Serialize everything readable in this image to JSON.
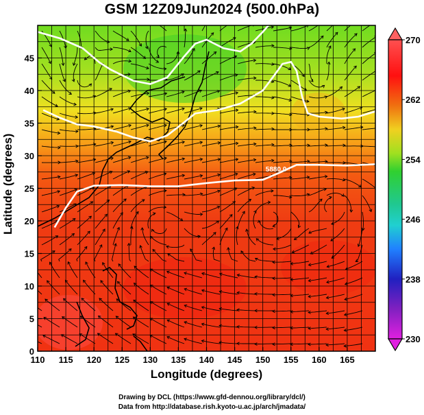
{
  "title": "GSM 12Z09Jun2024 (500.0hPa)",
  "axes": {
    "xlabel": "Longitude (degrees)",
    "ylabel": "Latitude  (degrees)",
    "xticks": [
      "110",
      "115",
      "120",
      "125",
      "130",
      "135",
      "140",
      "145",
      "150",
      "155",
      "160",
      "165"
    ],
    "yticks": [
      "0",
      "5",
      "10",
      "15",
      "20",
      "25",
      "30",
      "35",
      "40",
      "45"
    ]
  },
  "colorbar": {
    "labels": [
      "270",
      "262",
      "254",
      "246",
      "238",
      "230"
    ]
  },
  "contour_label": "5880.0",
  "credits": {
    "line1": "Drawing by DCL (https://www.gfd-dennou.org/library/dcl/)",
    "line2": "Data from http://database.rish.kyoto-u.ac.jp/arch/jmadata/"
  },
  "chart_data": {
    "type": "heatmap",
    "title": "GSM 12Z09Jun2024 (500.0hPa)",
    "xlabel": "Longitude (degrees)",
    "ylabel": "Latitude  (degrees)",
    "xlim": [
      110,
      170
    ],
    "ylim": [
      0,
      50
    ],
    "grid": true,
    "colorbar_range": [
      230,
      270
    ],
    "colorbar_ticks": [
      230,
      238,
      246,
      254,
      262,
      270
    ],
    "colormap": [
      "#e020e0",
      "#2020c0",
      "#2080ff",
      "#20d0d0",
      "#30d030",
      "#a0e020",
      "#f0d020",
      "#f07010",
      "#ff1010",
      "#ff5050"
    ],
    "contours": [
      {
        "label": "",
        "points": [
          [
            110,
            49
          ],
          [
            114,
            48
          ],
          [
            118,
            46.5
          ],
          [
            121,
            44.3
          ],
          [
            123,
            43.2
          ],
          [
            127,
            41.5
          ],
          [
            130,
            41
          ],
          [
            133,
            42
          ],
          [
            136,
            45.2
          ],
          [
            138,
            47.2
          ],
          [
            140,
            47.8
          ],
          [
            143,
            46.5
          ],
          [
            146,
            46
          ],
          [
            148,
            47.2
          ],
          [
            150,
            49
          ],
          [
            151,
            50
          ]
        ]
      },
      {
        "label": "",
        "points": [
          [
            111,
            37
          ],
          [
            114,
            35.8
          ],
          [
            117,
            34.8
          ],
          [
            120,
            34.5
          ],
          [
            124,
            33.7
          ],
          [
            127,
            32.8
          ],
          [
            130,
            32.2
          ],
          [
            133,
            33.1
          ],
          [
            136,
            35.1
          ],
          [
            138,
            36.5
          ],
          [
            142,
            37
          ],
          [
            146,
            38
          ],
          [
            150,
            40
          ],
          [
            152,
            42.3
          ],
          [
            153.5,
            44.1
          ],
          [
            155,
            44.4
          ],
          [
            156,
            43
          ],
          [
            157,
            39
          ],
          [
            158,
            36.5
          ],
          [
            160,
            36
          ],
          [
            164,
            35.7
          ],
          [
            167,
            36
          ],
          [
            170,
            36.8
          ]
        ]
      },
      {
        "label": "5880.0",
        "points": [
          [
            113,
            19
          ],
          [
            115,
            22
          ],
          [
            117,
            24.5
          ],
          [
            120,
            25.4
          ],
          [
            125,
            25.5
          ],
          [
            130,
            25.3
          ],
          [
            135,
            25.3
          ],
          [
            140,
            25.8
          ],
          [
            145,
            26.2
          ],
          [
            150,
            26.3
          ],
          [
            153,
            27.4
          ],
          [
            156,
            28.6
          ],
          [
            160,
            28.6
          ],
          [
            165,
            28.5
          ],
          [
            170,
            28.7
          ]
        ]
      }
    ]
  }
}
